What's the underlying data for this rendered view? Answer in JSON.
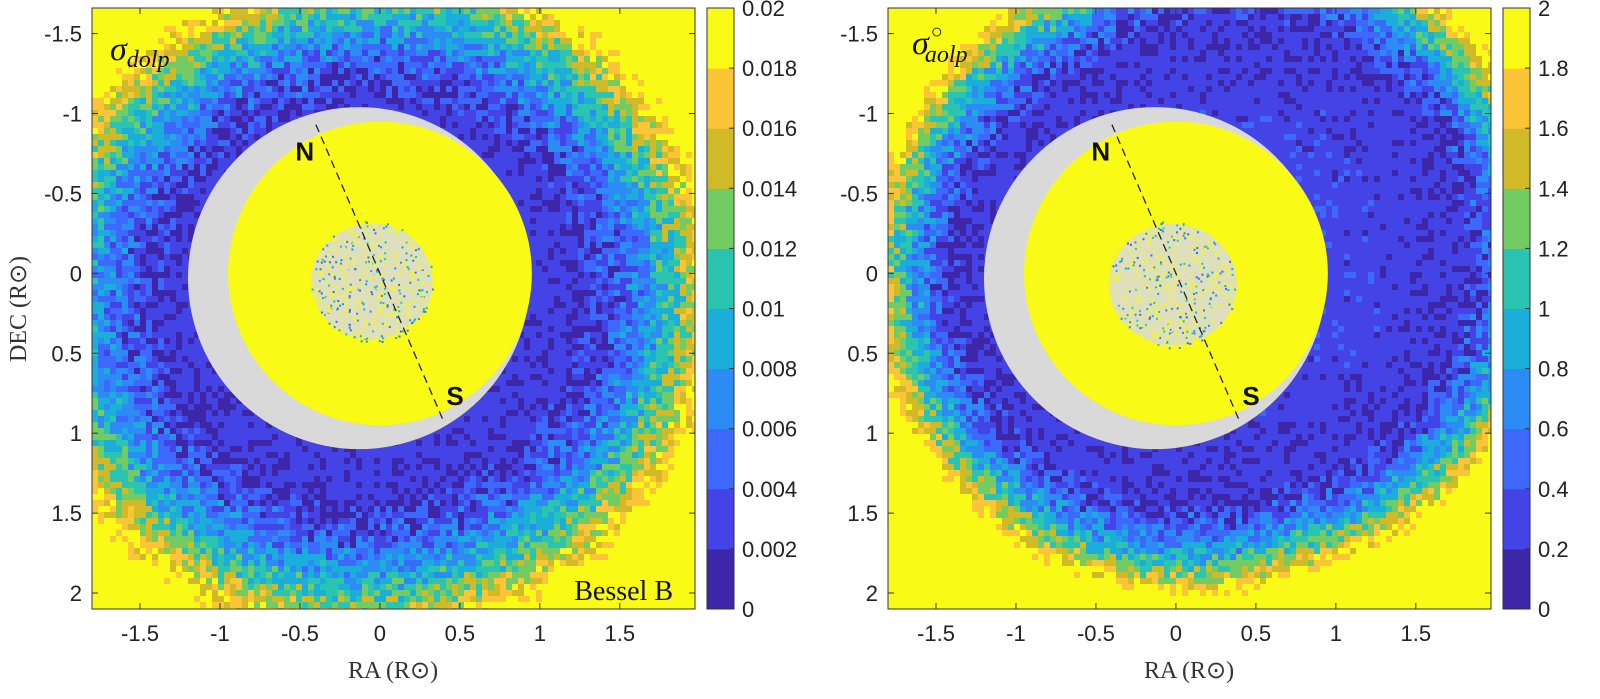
{
  "figure": {
    "shared_ylabel": "DEC",
    "shared_xlabel": "RA",
    "solar_radius_unit": "R⊙"
  },
  "colormap": [
    "#3e26a8",
    "#4343e6",
    "#3c68fc",
    "#2c8cf3",
    "#1caedb",
    "#2bc4b0",
    "#72cc63",
    "#d0ba28",
    "#fcc437",
    "#f9fa15"
  ],
  "mask_color": "#d9d9d9",
  "chart_data": [
    {
      "type": "heatmap",
      "title": "σ",
      "title_subscript": "dolp",
      "title_superscript": "",
      "corner_label": "Bessel B",
      "xlabel": "RA (R⊙)",
      "ylabel": "DEC (R⊙)",
      "xlim": [
        -1.8,
        1.97
      ],
      "ylim": [
        2.1,
        -1.66
      ],
      "xticks": [
        -1.5,
        -1,
        -0.5,
        0,
        0.5,
        1,
        1.5
      ],
      "xtick_labels": [
        "-1.5",
        "-1",
        "-0.5",
        "0",
        "0.5",
        "1",
        "1.5"
      ],
      "yticks": [
        -1.5,
        -1,
        -0.5,
        0,
        0.5,
        1,
        1.5,
        2
      ],
      "ytick_labels": [
        "-1.5",
        "-1",
        "-0.5",
        "0",
        "0.5",
        "1",
        "1.5",
        "2"
      ],
      "colorbar": {
        "min": 0,
        "max": 0.02,
        "levels": 10,
        "ticks": [
          0,
          0.002,
          0.004,
          0.006,
          0.008,
          0.01,
          0.012,
          0.014,
          0.016,
          0.018,
          0.02
        ],
        "tick_labels": [
          "0",
          "0.002",
          "0.004",
          "0.006",
          "0.008",
          "0.01",
          "0.012",
          "0.014",
          "0.016",
          "0.018",
          "0.02"
        ]
      },
      "field": {
        "center_ra": 0.02,
        "center_dec": 0.15,
        "min_radius": 1.25,
        "saturation_radius": 2.15,
        "dark_direction_deg": 200,
        "dark_gain": 0.15
      },
      "moon": {
        "center_ra": 0.0,
        "center_dec": 0.0,
        "disk_radius": 0.95,
        "occulter_ra": -0.13,
        "occulter_dec": 0.03,
        "occulter_radius": 1.07,
        "core_radius": 0.38,
        "core_center_ra": -0.05,
        "core_center_dec": 0.05
      },
      "axis_line": {
        "north_ra": -0.4,
        "north_dec": -0.93,
        "south_ra": 0.4,
        "south_dec": 0.93
      },
      "poles": [
        {
          "label": "N",
          "ra": -0.47,
          "dec": -0.75
        },
        {
          "label": "S",
          "ra": 0.47,
          "dec": 0.78
        }
      ]
    },
    {
      "type": "heatmap",
      "title": "σ",
      "title_subscript": "aolp",
      "title_superscript": "○",
      "corner_label": "",
      "xlabel": "RA (R⊙)",
      "ylabel": "",
      "xlim": [
        -1.8,
        1.97
      ],
      "ylim": [
        2.1,
        -1.66
      ],
      "xticks": [
        -1.5,
        -1,
        -0.5,
        0,
        0.5,
        1,
        1.5
      ],
      "xtick_labels": [
        "-1.5",
        "-1",
        "-0.5",
        "0",
        "0.5",
        "1",
        "1.5"
      ],
      "yticks": [
        -1.5,
        -1,
        -0.5,
        0,
        0.5,
        1,
        1.5,
        2
      ],
      "ytick_labels": [
        "-1.5",
        "-1",
        "-0.5",
        "0",
        "0.5",
        "1",
        "1.5",
        "2"
      ],
      "colorbar": {
        "min": 0,
        "max": 2,
        "levels": 10,
        "ticks": [
          0,
          0.2,
          0.4,
          0.6,
          0.8,
          1,
          1.2,
          1.4,
          1.6,
          1.8,
          2
        ],
        "tick_labels": [
          "0",
          "0.2",
          "0.4",
          "0.6",
          "0.8",
          "1",
          "1.2",
          "1.4",
          "1.6",
          "1.8",
          "2"
        ]
      },
      "field": {
        "center_ra": 0.1,
        "center_dec": 0.0,
        "min_radius": 1.45,
        "saturation_radius": 2.05,
        "dark_direction_deg": 25,
        "dark_gain": 0.3
      },
      "moon": {
        "center_ra": 0.0,
        "center_dec": 0.0,
        "disk_radius": 0.95,
        "occulter_ra": -0.13,
        "occulter_dec": 0.03,
        "occulter_radius": 1.07,
        "core_radius": 0.4,
        "core_center_ra": -0.02,
        "core_center_dec": 0.07
      },
      "axis_line": {
        "north_ra": -0.4,
        "north_dec": -0.93,
        "south_ra": 0.4,
        "south_dec": 0.93
      },
      "poles": [
        {
          "label": "N",
          "ra": -0.47,
          "dec": -0.75
        },
        {
          "label": "S",
          "ra": 0.47,
          "dec": 0.78
        }
      ]
    }
  ]
}
